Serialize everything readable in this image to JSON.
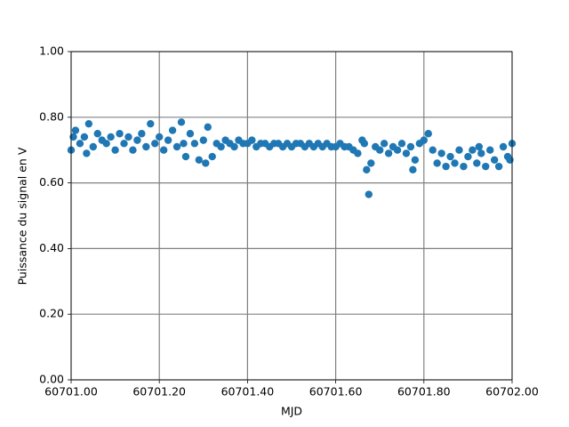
{
  "chart_data": {
    "type": "scatter",
    "x_label": "MJD",
    "y_label": "Puissance du signal en V",
    "color": "#1f77b4",
    "grid": true,
    "xlim": [
      60701.0,
      60702.0
    ],
    "ylim": [
      0,
      1
    ],
    "xticks": [
      {
        "value": 60701.0,
        "label": "60701.00"
      },
      {
        "value": 60701.2,
        "label": "60701.20"
      },
      {
        "value": 60701.4,
        "label": "60701.40"
      },
      {
        "value": 60701.6,
        "label": "60701.60"
      },
      {
        "value": 60701.8,
        "label": "60701.80"
      },
      {
        "value": 60702.0,
        "label": "60702.00"
      }
    ],
    "yticks": [
      {
        "value": 0,
        "label": "0.00"
      },
      {
        "value": 0.2,
        "label": "0.20"
      },
      {
        "value": 0.4,
        "label": "0.40"
      },
      {
        "value": 0.6,
        "label": "0.60"
      },
      {
        "value": 0.8,
        "label": "0.80"
      },
      {
        "value": 1,
        "label": "1.00"
      }
    ],
    "x": [
      60701.0,
      60701.01,
      60701.02,
      60701.03,
      60701.04,
      60701.05,
      60701.06,
      60701.07,
      60701.08,
      60701.09,
      60701.1,
      60701.11,
      60701.12,
      60701.13,
      60701.14,
      60701.15,
      60701.16,
      60701.17,
      60701.18,
      60701.19,
      60701.2,
      60701.21,
      60701.22,
      60701.23,
      60701.24,
      60701.25,
      60701.26,
      60701.27,
      60701.28,
      60701.29,
      60701.3,
      60701.31,
      60701.32,
      60701.33,
      60701.34,
      60701.35,
      60701.36,
      60701.37,
      60701.38,
      60701.39,
      60701.4,
      60701.41,
      60701.42,
      60701.43,
      60701.44,
      60701.45,
      60701.46,
      60701.47,
      60701.48,
      60701.49,
      60701.5,
      60701.51,
      60701.52,
      60701.53,
      60701.54,
      60701.55,
      60701.56,
      60701.57,
      60701.58,
      60701.59,
      60701.6,
      60701.61,
      60701.62,
      60701.63,
      60701.64,
      60701.65,
      60701.66,
      60701.67,
      60701.68,
      60701.69,
      60701.7,
      60701.71,
      60701.72,
      60701.73,
      60701.74,
      60701.75,
      60701.76,
      60701.77,
      60701.78,
      60701.79,
      60701.8,
      60701.81,
      60701.82,
      60701.83,
      60701.84,
      60701.85,
      60701.86,
      60701.87,
      60701.88,
      60701.89,
      60701.9,
      60701.91,
      60701.92,
      60701.93,
      60701.94,
      60701.95,
      60701.96,
      60701.97,
      60701.98,
      60701.99,
      60702.0,
      60701.675,
      60701.005,
      60701.035,
      60701.255,
      60701.305,
      60701.665,
      60701.775,
      60701.925,
      60701.995
    ],
    "values": [
      0.7,
      0.76,
      0.72,
      0.74,
      0.78,
      0.71,
      0.75,
      0.73,
      0.72,
      0.74,
      0.7,
      0.75,
      0.72,
      0.74,
      0.7,
      0.73,
      0.75,
      0.71,
      0.78,
      0.72,
      0.74,
      0.7,
      0.73,
      0.76,
      0.71,
      0.785,
      0.68,
      0.75,
      0.72,
      0.67,
      0.73,
      0.77,
      0.68,
      0.72,
      0.71,
      0.73,
      0.72,
      0.71,
      0.73,
      0.72,
      0.72,
      0.73,
      0.71,
      0.72,
      0.72,
      0.71,
      0.72,
      0.72,
      0.71,
      0.72,
      0.71,
      0.72,
      0.72,
      0.71,
      0.72,
      0.71,
      0.72,
      0.71,
      0.72,
      0.71,
      0.71,
      0.72,
      0.71,
      0.71,
      0.7,
      0.69,
      0.73,
      0.64,
      0.66,
      0.71,
      0.7,
      0.72,
      0.69,
      0.71,
      0.7,
      0.72,
      0.69,
      0.71,
      0.67,
      0.72,
      0.73,
      0.75,
      0.7,
      0.66,
      0.69,
      0.65,
      0.68,
      0.66,
      0.7,
      0.65,
      0.68,
      0.7,
      0.66,
      0.69,
      0.65,
      0.7,
      0.67,
      0.65,
      0.71,
      0.68,
      0.72,
      0.565,
      0.74,
      0.69,
      0.72,
      0.66,
      0.72,
      0.64,
      0.71,
      0.67
    ]
  }
}
